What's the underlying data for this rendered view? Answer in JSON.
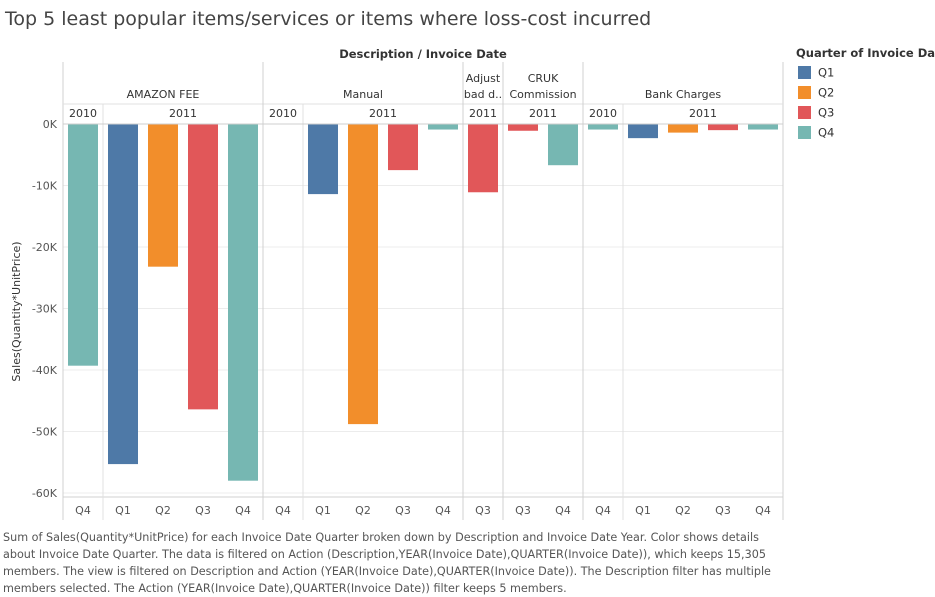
{
  "title": "Top 5 least popular items/services or items where loss-cost incurred",
  "caption": "Sum of Sales(Quantity*UnitPrice) for each Invoice Date Quarter broken down by Description and Invoice Date Year.  Color shows details about Invoice Date Quarter. The data is filtered on Action (Description,YEAR(Invoice Date),QUARTER(Invoice Date)), which keeps 15,305 members. The view is filtered on Description and Action (YEAR(Invoice Date),QUARTER(Invoice Date)). The Description filter has multiple members selected. The Action (YEAR(Invoice Date),QUARTER(Invoice Date)) filter keeps 5 members.",
  "legend": {
    "title": "Quarter of Invoice Date",
    "items": [
      {
        "label": "Q1",
        "color": "#4e79a7"
      },
      {
        "label": "Q2",
        "color": "#f28e2b"
      },
      {
        "label": "Q3",
        "color": "#e15759"
      },
      {
        "label": "Q4",
        "color": "#76b7b2"
      }
    ]
  },
  "chart_data": {
    "type": "bar",
    "title": "Top 5 least popular items/services or items where loss-cost incurred",
    "header_label": "Description  /  Invoice Date",
    "ylabel": "Sales(Quantity*UnitPrice)",
    "ylim": [
      -60000,
      0
    ],
    "yticks": [
      0,
      -10000,
      -20000,
      -30000,
      -40000,
      -50000,
      -60000
    ],
    "ytick_labels": [
      "0K",
      "-10K",
      "-20K",
      "-30K",
      "-40K",
      "-50K",
      "-60K"
    ],
    "grid": true,
    "legend_position": "right",
    "groups": [
      {
        "description": "AMAZON FEE",
        "years": [
          {
            "year": "2010",
            "quarters": [
              {
                "q": "Q4",
                "value": -39300
              }
            ]
          },
          {
            "year": "2011",
            "quarters": [
              {
                "q": "Q1",
                "value": -55300
              },
              {
                "q": "Q2",
                "value": -23200
              },
              {
                "q": "Q3",
                "value": -46400
              },
              {
                "q": "Q4",
                "value": -58000
              }
            ]
          }
        ]
      },
      {
        "description": "Manual",
        "years": [
          {
            "year": "2010",
            "quarters": [
              {
                "q": "Q4",
                "value": null
              }
            ]
          },
          {
            "year": "2011",
            "quarters": [
              {
                "q": "Q1",
                "value": -11400
              },
              {
                "q": "Q2",
                "value": -48800
              },
              {
                "q": "Q3",
                "value": -7500
              },
              {
                "q": "Q4",
                "value": -900
              }
            ]
          }
        ]
      },
      {
        "description": "Adjust bad d..",
        "years": [
          {
            "year": "2011",
            "quarters": [
              {
                "q": "Q3",
                "value": -11100
              }
            ]
          }
        ]
      },
      {
        "description": "CRUK Commission",
        "years": [
          {
            "year": "2011",
            "quarters": [
              {
                "q": "Q3",
                "value": -1100
              },
              {
                "q": "Q4",
                "value": -6700
              }
            ]
          }
        ]
      },
      {
        "description": "Bank Charges",
        "years": [
          {
            "year": "2010",
            "quarters": [
              {
                "q": "Q4",
                "value": -900
              }
            ]
          },
          {
            "year": "2011",
            "quarters": [
              {
                "q": "Q1",
                "value": -2300
              },
              {
                "q": "Q2",
                "value": -1400
              },
              {
                "q": "Q3",
                "value": -1000
              },
              {
                "q": "Q4",
                "value": -900
              }
            ]
          }
        ]
      }
    ]
  }
}
